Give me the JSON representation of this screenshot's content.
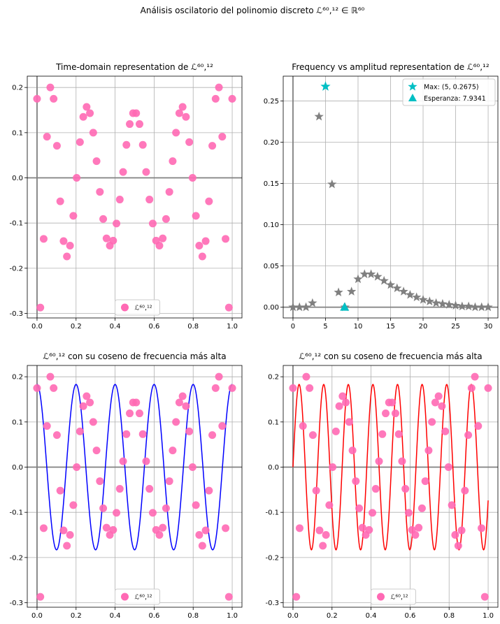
{
  "figure": {
    "title": "Análisis oscilatorio del polinomio discreto ℒ⁶⁰,¹² ∈ ℝ⁶⁰"
  },
  "colors": {
    "points": "#ff69b4",
    "stars": "#808080",
    "highlight": "#00bfc4",
    "cos_blue": "#0000ff",
    "cos_red": "#ff0000",
    "axis_zero": "#808080",
    "grid": "#b0b0b0"
  },
  "chart_data": [
    {
      "id": "time-domain",
      "type": "scatter",
      "title": "Time-domain representation de ℒ⁶⁰,¹²",
      "xlim": [
        -0.05,
        1.05
      ],
      "ylim": [
        -0.31,
        0.225
      ],
      "xticks": [
        "0.0",
        "0.2",
        "0.4",
        "0.6",
        "0.8",
        "1.0"
      ],
      "yticks": [
        "-0.3",
        "-0.2",
        "-0.1",
        "0.0",
        "0.1",
        "0.2"
      ],
      "legend": {
        "label": "ℒ⁶⁰,¹²",
        "position": "bottom-center"
      },
      "series": [
        {
          "name": "ℒ⁶⁰,¹²",
          "x": [
            0.0,
            0.017,
            0.034,
            0.051,
            0.068,
            0.085,
            0.102,
            0.119,
            0.136,
            0.153,
            0.169,
            0.186,
            0.203,
            0.22,
            0.237,
            0.254,
            0.271,
            0.288,
            0.305,
            0.322,
            0.339,
            0.356,
            0.373,
            0.39,
            0.407,
            0.424,
            0.441,
            0.458,
            0.475,
            0.492,
            0.508,
            0.525,
            0.542,
            0.559,
            0.576,
            0.593,
            0.61,
            0.627,
            0.644,
            0.661,
            0.678,
            0.695,
            0.712,
            0.729,
            0.746,
            0.763,
            0.78,
            0.797,
            0.814,
            0.831,
            0.847,
            0.864,
            0.881,
            0.898,
            0.915,
            0.932,
            0.949,
            0.966,
            0.983,
            1.0
          ],
          "y": [
            0.175,
            -0.287,
            -0.135,
            0.091,
            0.2,
            0.175,
            0.071,
            -0.052,
            -0.14,
            -0.174,
            -0.15,
            -0.084,
            0.0,
            0.079,
            0.135,
            0.157,
            0.143,
            0.1,
            0.037,
            -0.031,
            -0.091,
            -0.134,
            -0.15,
            -0.139,
            -0.101,
            -0.048,
            0.013,
            0.073,
            0.119,
            0.143,
            0.143,
            0.119,
            0.073,
            0.013,
            -0.048,
            -0.101,
            -0.139,
            -0.15,
            -0.134,
            -0.091,
            -0.031,
            0.037,
            0.1,
            0.143,
            0.157,
            0.135,
            0.079,
            0.0,
            -0.084,
            -0.15,
            -0.174,
            -0.14,
            -0.052,
            0.071,
            0.175,
            0.2,
            0.091,
            -0.135,
            -0.287,
            0.175
          ]
        }
      ]
    },
    {
      "id": "frequency",
      "type": "scatter",
      "title": "Frequency vs amplitud representation de ℒ⁶⁰,¹²",
      "xlim": [
        -1.5,
        31.5
      ],
      "ylim": [
        -0.013,
        0.28
      ],
      "xticks": [
        "0",
        "5",
        "10",
        "15",
        "20",
        "25",
        "30"
      ],
      "yticks": [
        "0.00",
        "0.05",
        "0.10",
        "0.15",
        "0.20",
        "0.25"
      ],
      "legend": {
        "position": "top-right",
        "entries": [
          "Max: (5, 0.2675)",
          "Esperanza: 7.9341"
        ]
      },
      "series": [
        {
          "name": "amplitud",
          "x": [
            0,
            1,
            2,
            3,
            4,
            5,
            6,
            7,
            8,
            9,
            10,
            11,
            12,
            13,
            14,
            15,
            16,
            17,
            18,
            19,
            20,
            21,
            22,
            23,
            24,
            25,
            26,
            27,
            28,
            29,
            30
          ],
          "y": [
            0.0,
            0.0,
            0.0,
            0.005,
            0.231,
            0.2675,
            0.149,
            0.018,
            0.0,
            0.019,
            0.034,
            0.04,
            0.04,
            0.037,
            0.032,
            0.027,
            0.023,
            0.019,
            0.015,
            0.012,
            0.009,
            0.007,
            0.005,
            0.004,
            0.003,
            0.002,
            0.001,
            0.001,
            0.0,
            0.0,
            0.0
          ]
        }
      ],
      "max_point": {
        "x": 5,
        "y": 0.2675
      },
      "expectation_point": {
        "x": 7.9341,
        "y": 0.0
      }
    },
    {
      "id": "cos-high",
      "type": "scatter",
      "title": "ℒ⁶⁰,¹² con su coseno de frecuencia más alta",
      "xlim": [
        -0.05,
        1.05
      ],
      "ylim": [
        -0.31,
        0.225
      ],
      "xticks": [
        "0.0",
        "0.2",
        "0.4",
        "0.6",
        "0.8",
        "1.0"
      ],
      "yticks": [
        "-0.3",
        "-0.2",
        "-0.1",
        "0.0",
        "0.1",
        "0.2"
      ],
      "legend": {
        "label": "ℒ⁶⁰,¹²",
        "position": "bottom-center"
      },
      "curve": {
        "kind": "cos",
        "amplitude": 0.183,
        "frequency": 5,
        "phase": 0
      }
    },
    {
      "id": "cos-expect",
      "type": "scatter",
      "title": "ℒ⁶⁰,¹² con su coseno de frecuencia más alta",
      "xlim": [
        -0.05,
        1.05
      ],
      "ylim": [
        -0.31,
        0.225
      ],
      "xticks": [
        "0.0",
        "0.2",
        "0.4",
        "0.6",
        "0.8",
        "1.0"
      ],
      "yticks": [
        "-0.3",
        "-0.2",
        "-0.1",
        "0.0",
        "0.1",
        "0.2"
      ],
      "legend": {
        "label": "ℒ⁶⁰,¹²",
        "position": "bottom-center"
      },
      "curve": {
        "kind": "sin",
        "amplitude": 0.183,
        "frequency": 7.9341,
        "phase": 0
      }
    }
  ]
}
